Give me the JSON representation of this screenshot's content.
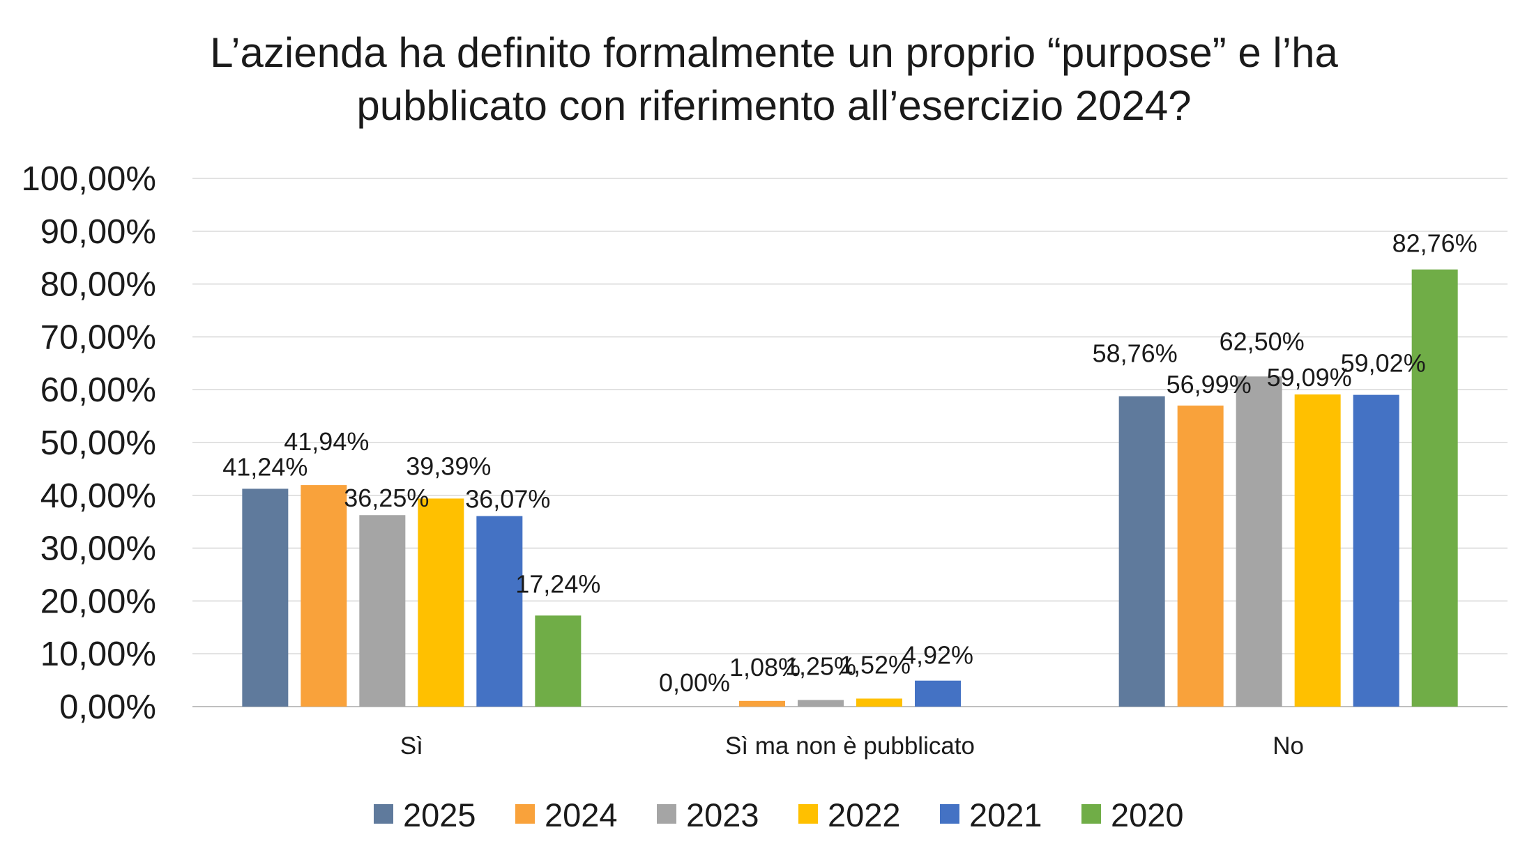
{
  "chart_data": {
    "type": "bar",
    "title_lines": [
      "L’azienda ha definito formalmente un proprio “purpose” e l’ha",
      "pubblicato con riferimento all’esercizio 2024?"
    ],
    "xlabel": "",
    "ylabel": "",
    "ylim": [
      0,
      100
    ],
    "ytick_values": [
      0,
      10,
      20,
      30,
      40,
      50,
      60,
      70,
      80,
      90,
      100
    ],
    "ytick_labels": [
      "0,00%",
      "10,00%",
      "20,00%",
      "30,00%",
      "40,00%",
      "50,00%",
      "60,00%",
      "70,00%",
      "80,00%",
      "90,00%",
      "100,00%"
    ],
    "grid": true,
    "legend_position": "bottom",
    "categories": [
      "Sì",
      "Sì ma non è pubblicato",
      "No"
    ],
    "series": [
      {
        "name": "2025",
        "color": "#5f7a9c",
        "values": [
          41.24,
          0.0,
          58.76
        ],
        "labels": [
          "41,24%",
          "0,00%",
          "58,76%"
        ]
      },
      {
        "name": "2024",
        "color": "#f9a23b",
        "values": [
          41.94,
          1.08,
          56.99
        ],
        "labels": [
          "41,94%",
          "1,08%",
          "56,99%"
        ]
      },
      {
        "name": "2023",
        "color": "#a5a5a5",
        "values": [
          36.25,
          1.25,
          62.5
        ],
        "labels": [
          "36,25%",
          "1,25%",
          "62,50%"
        ]
      },
      {
        "name": "2022",
        "color": "#ffc000",
        "values": [
          39.39,
          1.52,
          59.09
        ],
        "labels": [
          "39,39%",
          "1,52%",
          "59,09%"
        ]
      },
      {
        "name": "2021",
        "color": "#4472c4",
        "values": [
          36.07,
          4.92,
          59.02
        ],
        "labels": [
          "36,07%",
          "4,92%",
          "59,02%"
        ]
      },
      {
        "name": "2020",
        "color": "#70ad47",
        "values": [
          17.24,
          null,
          82.76
        ],
        "labels": [
          "17,24%",
          null,
          "82,76%"
        ]
      }
    ]
  }
}
